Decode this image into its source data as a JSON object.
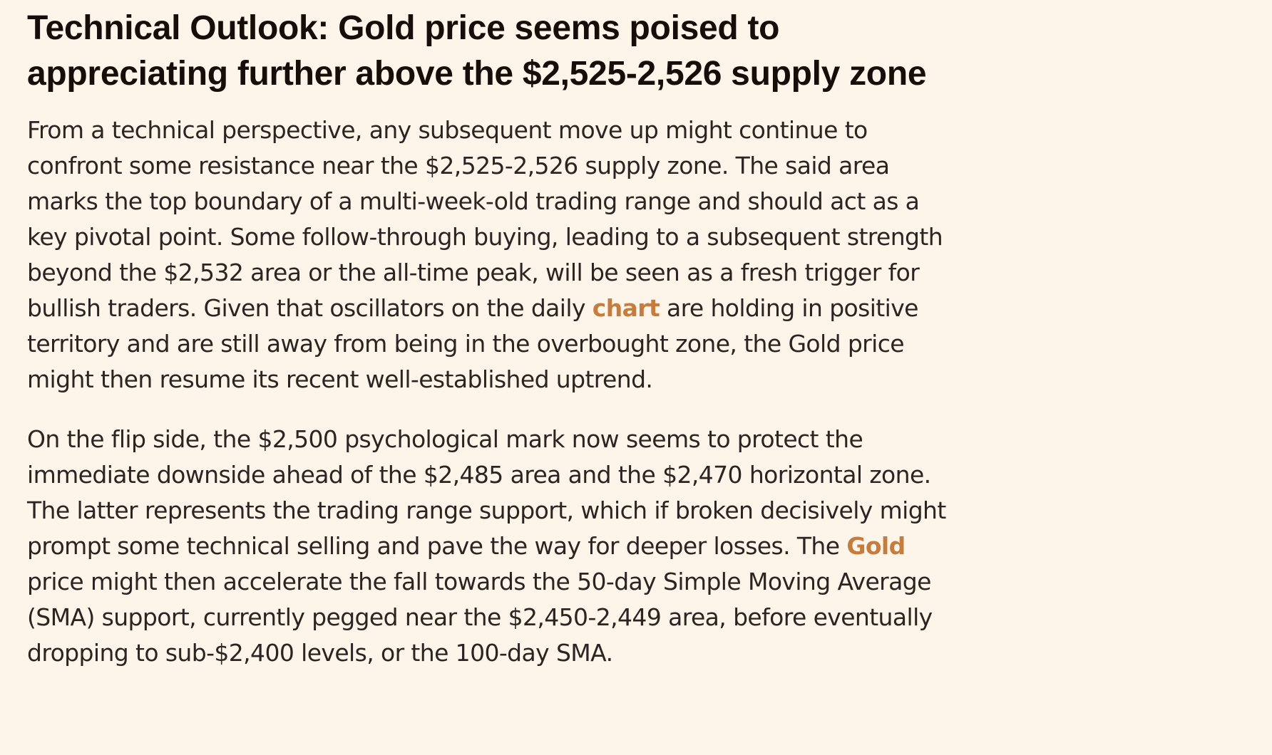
{
  "article": {
    "headline": "Technical Outlook: Gold price seems poised to appreciating further above the $2,525-2,526 supply zone",
    "paragraph1": {
      "before_link": "From a technical perspective, any subsequent move up might continue to confront some resistance near the $2,525-2,526 supply zone. The said area marks the top boundary of a multi-week-old trading range and should act as a key pivotal point. Some follow-through buying, leading to a subsequent strength beyond the $2,532 area or the all-time peak, will be seen as a fresh trigger for bullish traders. Given that oscillators on the daily ",
      "link_text": "chart",
      "after_link": " are holding in positive territory and are still away from being in the overbought zone, the Gold price might then resume its recent well-established uptrend."
    },
    "paragraph2": {
      "before_link": "On the flip side, the $2,500 psychological mark now seems to protect the immediate downside ahead of the $2,485 area and the $2,470 horizontal zone. The latter represents the trading range support, which if broken decisively might prompt some technical selling and pave the way for deeper losses. The ",
      "link_text": "Gold",
      "after_link": " price might then accelerate the fall towards the 50-day Simple Moving Average (SMA) support, currently pegged near the $2,450-2,449 area, before eventually dropping to sub-$2,400 levels, or the 100-day SMA."
    }
  },
  "colors": {
    "background": "#fdf5e9",
    "headline": "#170d09",
    "body_text": "#2c2421",
    "link": "#c67c3c"
  }
}
